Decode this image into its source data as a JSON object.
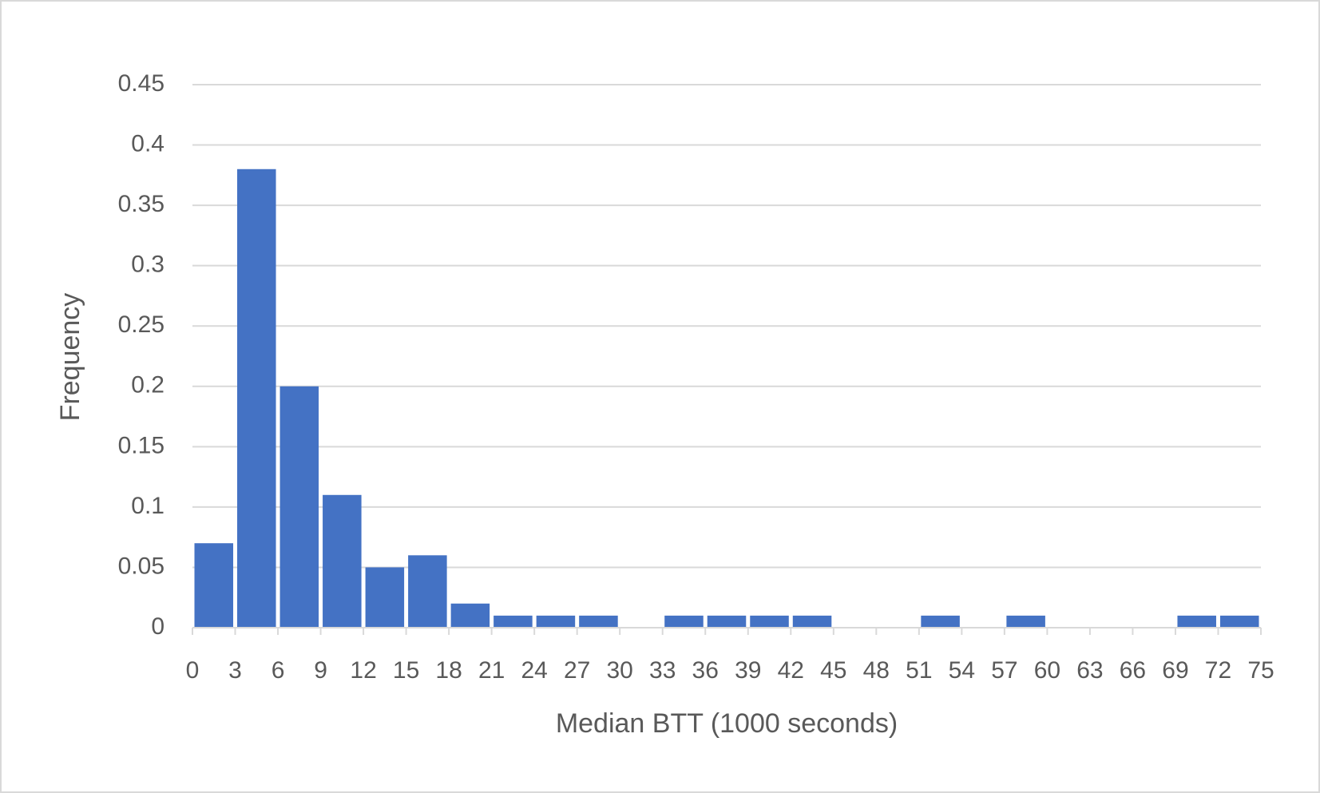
{
  "chart_data": {
    "type": "histogram",
    "x_label": "Median BTT (1000 seconds)",
    "y_label": "Frequency",
    "bins": [
      0,
      3,
      6,
      9,
      12,
      15,
      18,
      21,
      24,
      27,
      30,
      33,
      36,
      39,
      42,
      45,
      48,
      51,
      54,
      57,
      60,
      63,
      66,
      69,
      72,
      75
    ],
    "values": [
      0.07,
      0.38,
      0.2,
      0.11,
      0.05,
      0.06,
      0.02,
      0.01,
      0.01,
      0.01,
      0,
      0.01,
      0.01,
      0.01,
      0.01,
      0,
      0,
      0.01,
      0,
      0.01,
      0,
      0,
      0,
      0.01,
      0.01
    ],
    "color": "#4472c4",
    "xlim": [
      0,
      75
    ],
    "xticks": [
      0,
      3,
      6,
      9,
      12,
      15,
      18,
      21,
      24,
      27,
      30,
      33,
      36,
      39,
      42,
      45,
      48,
      51,
      54,
      57,
      60,
      63,
      66,
      69,
      72,
      75
    ],
    "ylim": [
      0,
      0.45
    ],
    "yticks": [
      0,
      0.05,
      0.1,
      0.15,
      0.2,
      0.25,
      0.3,
      0.35,
      0.4,
      0.45
    ],
    "grid": true
  }
}
